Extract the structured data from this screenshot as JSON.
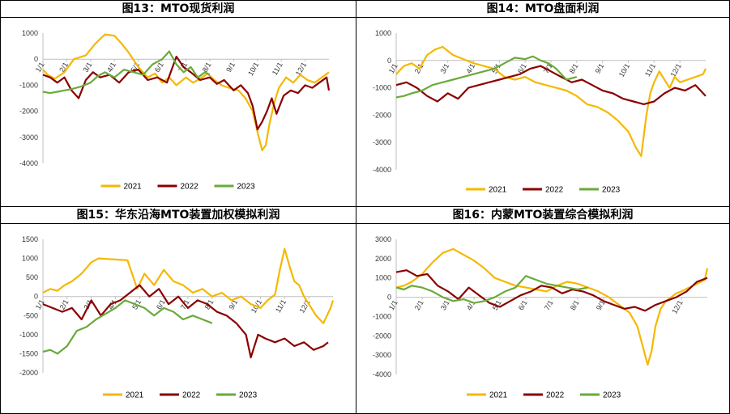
{
  "colors": {
    "s2021": "#F5B800",
    "s2022": "#8B0000",
    "s2023": "#6AAA3A",
    "axis": "#BFBFBF"
  },
  "chart_data": [
    {
      "type": "line",
      "title": "图13：MTO现货利润",
      "ylim": [
        -4000,
        1000
      ],
      "yticks": [
        "1000",
        "0",
        "-1000",
        "-2000",
        "-3000",
        "-4000"
      ],
      "xticks": [
        "1/1",
        "2/1",
        "3/1",
        "4/1",
        "5/1",
        "6/1",
        "7/1",
        "8/1",
        "9/1",
        "10/1",
        "11/1",
        "12/1"
      ],
      "legend": "bottom",
      "series": [
        {
          "name": "2021",
          "x": [
            0,
            0.2,
            0.5,
            0.9,
            1.3,
            1.8,
            2.2,
            2.6,
            3.0,
            3.3,
            3.6,
            4.0,
            4.4,
            4.7,
            5.0,
            5.3,
            5.6,
            6.0,
            6.3,
            6.6,
            6.9,
            7.2,
            7.5,
            7.8,
            8.2,
            8.5,
            8.8,
            9.0,
            9.2,
            9.35,
            9.5,
            9.7,
            9.9,
            10.2,
            10.5,
            10.8,
            11.1,
            11.4,
            11.7,
            12.0
          ],
          "y": [
            -400,
            -600,
            -750,
            -500,
            0,
            150,
            600,
            950,
            900,
            600,
            250,
            -300,
            -700,
            -550,
            -900,
            -700,
            -1000,
            -700,
            -900,
            -750,
            -550,
            -800,
            -1000,
            -1100,
            -1200,
            -1500,
            -2000,
            -2800,
            -3500,
            -3300,
            -2500,
            -1700,
            -1100,
            -700,
            -900,
            -600,
            -800,
            -900,
            -700,
            -500
          ]
        },
        {
          "name": "2022",
          "x": [
            0,
            0.3,
            0.6,
            0.9,
            1.2,
            1.5,
            1.8,
            2.1,
            2.4,
            2.8,
            3.2,
            3.6,
            4.0,
            4.4,
            4.8,
            5.2,
            5.6,
            5.9,
            6.2,
            6.6,
            7.0,
            7.3,
            7.6,
            8.0,
            8.3,
            8.6,
            8.8,
            9.0,
            9.2,
            9.4,
            9.6,
            9.8,
            10.1,
            10.4,
            10.7,
            11.0,
            11.3,
            11.6,
            11.9,
            12.0
          ],
          "y": [
            -600,
            -700,
            -900,
            -700,
            -1200,
            -1500,
            -800,
            -500,
            -700,
            -600,
            -900,
            -500,
            -400,
            -800,
            -700,
            -900,
            100,
            -300,
            -500,
            -800,
            -700,
            -950,
            -800,
            -1200,
            -1000,
            -1300,
            -1800,
            -2700,
            -2400,
            -2000,
            -1500,
            -2100,
            -1400,
            -1200,
            -1300,
            -1000,
            -1100,
            -900,
            -700,
            -1200
          ]
        },
        {
          "name": "2023",
          "x": [
            0,
            0.3,
            0.6,
            0.9,
            1.2,
            1.6,
            2.0,
            2.3,
            2.6,
            3.0,
            3.4,
            3.8,
            4.2,
            4.6,
            5.0,
            5.3,
            5.6,
            5.9,
            6.2,
            6.5,
            6.8,
            7.0
          ],
          "y": [
            -1250,
            -1300,
            -1250,
            -1200,
            -1150,
            -1050,
            -900,
            -650,
            -500,
            -700,
            -400,
            -500,
            -600,
            -200,
            0,
            300,
            -200,
            -500,
            -300,
            -700,
            -500,
            -600
          ]
        }
      ]
    },
    {
      "type": "line",
      "title": "图14：MTO盘面利润",
      "ylim": [
        -4000,
        1000
      ],
      "yticks": [
        "1000",
        "0",
        "-1000",
        "-2000",
        "-3000",
        "-4000"
      ],
      "xticks": [
        "1/1",
        "2/1",
        "3/1",
        "4/1",
        "5/1",
        "6/1",
        "7/1",
        "8/1",
        "9/1",
        "10/1",
        "11/1",
        "12/1"
      ],
      "legend": "bottom",
      "series": [
        {
          "name": "2021",
          "x": [
            0,
            0.3,
            0.6,
            0.9,
            1.2,
            1.5,
            1.8,
            2.2,
            2.6,
            3.0,
            3.4,
            3.8,
            4.2,
            4.6,
            5.0,
            5.4,
            5.8,
            6.2,
            6.6,
            7.0,
            7.4,
            7.8,
            8.2,
            8.6,
            9.0,
            9.3,
            9.5,
            9.7,
            9.85,
            10.0,
            10.2,
            10.4,
            10.6,
            10.8,
            11.0,
            11.3,
            11.6,
            11.9,
            12.0
          ],
          "y": [
            -500,
            -200,
            -100,
            -300,
            200,
            400,
            500,
            200,
            50,
            -100,
            -200,
            -300,
            -600,
            -700,
            -600,
            -800,
            -900,
            -1000,
            -1100,
            -1300,
            -1600,
            -1700,
            -1900,
            -2200,
            -2600,
            -3200,
            -3500,
            -2000,
            -1200,
            -800,
            -400,
            -700,
            -1000,
            -600,
            -800,
            -700,
            -600,
            -500,
            -300
          ]
        },
        {
          "name": "2022",
          "x": [
            0,
            0.4,
            0.8,
            1.2,
            1.6,
            2.0,
            2.4,
            2.8,
            3.2,
            3.6,
            4.0,
            4.4,
            4.8,
            5.2,
            5.6,
            6.0,
            6.4,
            6.8,
            7.2,
            7.6,
            8.0,
            8.4,
            8.8,
            9.2,
            9.6,
            10.0,
            10.4,
            10.8,
            11.2,
            11.6,
            12.0
          ],
          "y": [
            -900,
            -800,
            -1000,
            -1300,
            -1500,
            -1200,
            -1400,
            -1000,
            -900,
            -800,
            -700,
            -600,
            -500,
            -300,
            -200,
            -400,
            -600,
            -800,
            -700,
            -900,
            -1100,
            -1200,
            -1400,
            -1500,
            -1600,
            -1500,
            -1200,
            -1000,
            -1100,
            -900,
            -1300
          ]
        },
        {
          "name": "2023",
          "x": [
            0,
            0.3,
            0.6,
            1.0,
            1.4,
            1.8,
            2.2,
            2.6,
            3.0,
            3.4,
            3.8,
            4.2,
            4.6,
            5.0,
            5.3,
            5.6,
            5.9,
            6.2,
            6.6,
            7.0
          ],
          "y": [
            -1350,
            -1300,
            -1200,
            -1100,
            -900,
            -800,
            -700,
            -600,
            -500,
            -400,
            -300,
            -100,
            100,
            50,
            150,
            0,
            -100,
            -300,
            -700,
            -600
          ]
        }
      ]
    },
    {
      "type": "line",
      "title": "图15：华东沿海MTO装置加权模拟利润",
      "ylim": [
        -2000,
        1500
      ],
      "yticks": [
        "1500",
        "1000",
        "500",
        "0",
        "-500",
        "-1000",
        "-1500",
        "-2000"
      ],
      "xticks": [
        "1/1",
        "2/1",
        "3/1",
        "4/1",
        "5/1",
        "6/1",
        "7/1",
        "8/1",
        "9/1",
        "10/1",
        "11/1",
        "12/1"
      ],
      "legend": "bottom",
      "series": [
        {
          "name": "2021",
          "x": [
            0,
            0.3,
            0.6,
            0.9,
            1.2,
            1.6,
            2.0,
            2.3,
            3.5,
            3.9,
            4.2,
            4.6,
            5.0,
            5.4,
            5.8,
            6.2,
            6.6,
            7.0,
            7.4,
            7.8,
            8.2,
            8.6,
            9.0,
            9.3,
            9.6,
            9.8,
            10.0,
            10.2,
            10.4,
            10.6,
            10.8,
            11.0,
            11.3,
            11.6,
            11.9,
            12.0
          ],
          "y": [
            100,
            200,
            150,
            300,
            400,
            600,
            900,
            1000,
            950,
            200,
            600,
            300,
            700,
            400,
            300,
            100,
            200,
            0,
            100,
            -100,
            0,
            -200,
            -300,
            -100,
            50,
            700,
            1250,
            800,
            400,
            300,
            0,
            -200,
            -500,
            -700,
            -300,
            -100
          ]
        },
        {
          "name": "2022",
          "x": [
            0,
            0.4,
            0.8,
            1.2,
            1.6,
            2.0,
            2.4,
            2.8,
            3.2,
            3.6,
            4.0,
            4.4,
            4.8,
            5.2,
            5.6,
            6.0,
            6.4,
            6.8,
            7.2,
            7.6,
            8.0,
            8.4,
            8.6,
            8.9,
            9.2,
            9.6,
            10.0,
            10.4,
            10.8,
            11.2,
            11.6,
            11.8
          ],
          "y": [
            -200,
            -300,
            -400,
            -300,
            -600,
            -100,
            -500,
            -200,
            -100,
            100,
            300,
            0,
            200,
            -200,
            0,
            -300,
            -100,
            -200,
            -400,
            -500,
            -700,
            -1000,
            -1600,
            -1000,
            -1100,
            -1200,
            -1100,
            -1300,
            -1200,
            -1400,
            -1300,
            -1200
          ]
        },
        {
          "name": "2023",
          "x": [
            0,
            0.3,
            0.6,
            1.0,
            1.4,
            1.8,
            2.2,
            2.6,
            3.0,
            3.4,
            3.8,
            4.2,
            4.6,
            5.0,
            5.4,
            5.8,
            6.2,
            6.6,
            7.0
          ],
          "y": [
            -1450,
            -1400,
            -1500,
            -1300,
            -900,
            -800,
            -600,
            -450,
            -300,
            -100,
            -200,
            -300,
            -500,
            -300,
            -400,
            -600,
            -500,
            -600,
            -700
          ]
        }
      ]
    },
    {
      "type": "line",
      "title": "图16：内蒙MTO装置综合模拟利润",
      "ylim": [
        -4000,
        3000
      ],
      "yticks": [
        "3000",
        "2000",
        "1000",
        "0",
        "-1000",
        "-2000",
        "-3000",
        "-4000"
      ],
      "xticks": [
        "1/1",
        "2/1",
        "3/1",
        "4/1",
        "5/1",
        "6/1",
        "7/1",
        "8/1",
        "9/1",
        "12/1"
      ],
      "legend": "bottom",
      "series": [
        {
          "name": "2021",
          "x": [
            0,
            0.3,
            0.6,
            1.0,
            1.4,
            1.8,
            2.2,
            2.6,
            3.0,
            3.4,
            3.8,
            4.2,
            4.6,
            5.0,
            5.4,
            5.8,
            6.2,
            6.6,
            7.0,
            7.4,
            7.8,
            8.2,
            8.6,
            9.0,
            9.3,
            9.5,
            9.7,
            9.85,
            10.0,
            10.2,
            10.4,
            10.6,
            10.8,
            11.0,
            11.3,
            11.6,
            11.9,
            12.0
          ],
          "y": [
            500,
            600,
            800,
            1200,
            1800,
            2300,
            2500,
            2200,
            1900,
            1500,
            1000,
            800,
            600,
            500,
            400,
            300,
            600,
            800,
            700,
            500,
            300,
            0,
            -400,
            -800,
            -1500,
            -2500,
            -3500,
            -2800,
            -1500,
            -600,
            -200,
            0,
            200,
            300,
            500,
            700,
            900,
            1500
          ]
        },
        {
          "name": "2022",
          "x": [
            0,
            0.4,
            0.8,
            1.2,
            1.6,
            2.0,
            2.4,
            2.8,
            3.2,
            3.6,
            4.0,
            4.4,
            4.8,
            5.2,
            5.6,
            6.0,
            6.4,
            6.8,
            7.2,
            7.6,
            8.0,
            8.4,
            8.8,
            9.2,
            9.6,
            10.0,
            10.4,
            10.8,
            11.2,
            11.6,
            12.0
          ],
          "y": [
            1300,
            1400,
            1100,
            1200,
            600,
            300,
            -100,
            500,
            100,
            -300,
            -500,
            -200,
            100,
            300,
            600,
            500,
            200,
            400,
            300,
            100,
            -200,
            -400,
            -600,
            -500,
            -700,
            -400,
            -200,
            0,
            300,
            800,
            1000
          ]
        },
        {
          "name": "2023",
          "x": [
            0,
            0.3,
            0.6,
            1.0,
            1.4,
            1.8,
            2.2,
            2.6,
            3.0,
            3.4,
            3.8,
            4.2,
            4.6,
            5.0,
            5.4,
            5.8,
            6.2,
            6.6,
            7.0,
            7.4
          ],
          "y": [
            500,
            400,
            600,
            500,
            300,
            0,
            -200,
            -100,
            -300,
            -200,
            0,
            300,
            500,
            1100,
            900,
            700,
            600,
            500,
            400,
            500
          ]
        }
      ]
    }
  ]
}
